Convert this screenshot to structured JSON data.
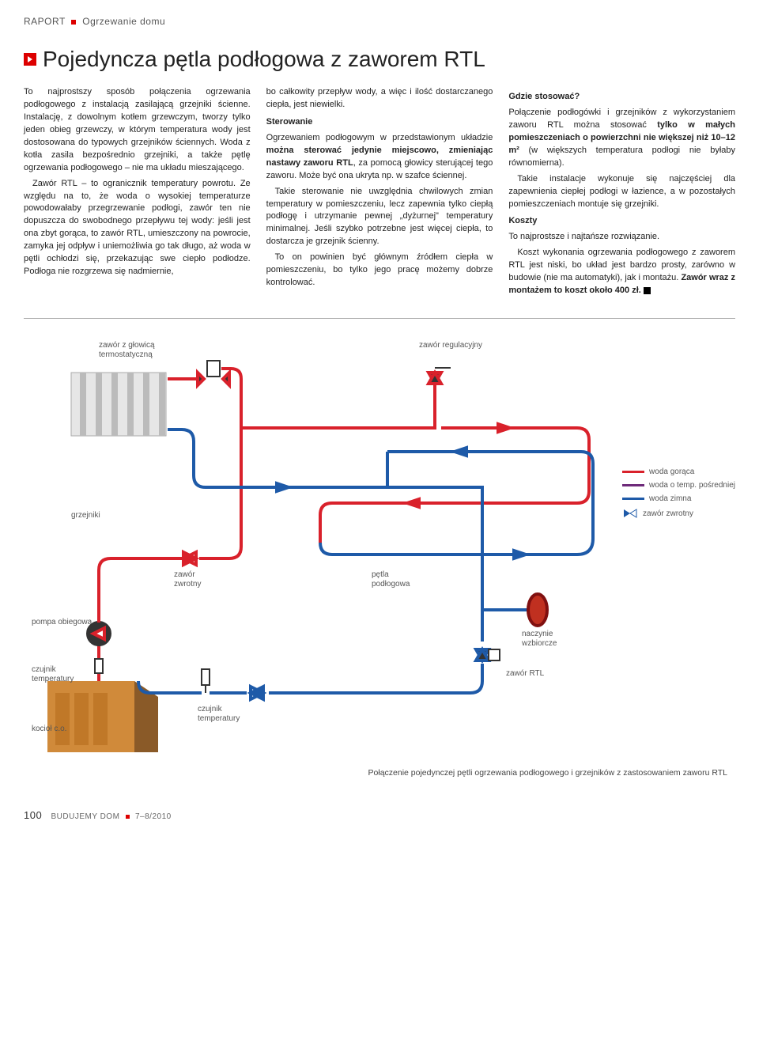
{
  "header": {
    "section": "RAPORT",
    "subsection": "Ogrzewanie domu"
  },
  "article": {
    "title": "Pojedyncza pętla podłogowa z zaworem RTL"
  },
  "col1": {
    "p1": "To najprostszy sposób połączenia ogrzewania podłogowego z instalacją zasilającą grzejniki ścienne. Instalację, z dowolnym kotłem grzewczym, tworzy tylko jeden obieg grzewczy, w którym temperatura wody jest dostosowana do typowych grzejników ściennych. Woda z kotła zasila bezpośrednio grzejniki, a także pętlę ogrzewania podłogowego – nie ma układu mieszającego.",
    "p2": "Zawór RTL – to ogranicznik temperatury powrotu. Ze względu na to, że woda o wysokiej temperaturze powodowałaby przegrzewanie podłogi, zawór ten nie dopuszcza do swobodnego przepływu tej wody: jeśli jest ona zbyt gorąca, to zawór RTL, umieszczony na powrocie, zamyka jej odpływ i uniemożliwia go tak długo, aż woda w pętli ochłodzi się, przekazując swe ciepło podłodze. Podłoga nie rozgrzewa się nadmiernie,"
  },
  "col2": {
    "p1": "bo całkowity przepływ wody, a więc i ilość dostarczanego ciepła, jest niewielki.",
    "head1": "Sterowanie",
    "p2a": "Ogrzewaniem podłogowym w przedstawionym układzie ",
    "p2b": "można sterować jedynie miejscowo, zmieniając nastawy zaworu RTL",
    "p2c": ", za pomocą głowicy sterującej tego zaworu. Może być ona ukryta np. w szafce ściennej.",
    "p3": "Takie sterowanie nie uwzględnia chwilowych zmian temperatury w pomieszczeniu, lecz zapewnia tylko ciepłą podłogę i utrzymanie pewnej „dyżurnej\" temperatury minimalnej. Jeśli szybko potrzebne jest więcej ciepła, to dostarcza je grzejnik ścienny.",
    "p4": "To on powinien być głównym źródłem ciepła w pomieszczeniu, bo tylko jego pracę możemy dobrze kontrolować."
  },
  "col3": {
    "head1": "Gdzie stosować?",
    "p1a": "Połączenie podłogówki i grzejników z wykorzystaniem zaworu RTL można stosować ",
    "p1b": "tylko w małych pomieszczeniach o powierzchni nie większej niż 10–12 m²",
    "p1c": " (w większych temperatura podłogi nie byłaby równomierna).",
    "p2": "Takie instalacje wykonuje się najczęściej dla zapewnienia ciepłej podłogi w łazience, a w pozostałych pomieszczeniach montuje się grzejniki.",
    "head2": "Koszty",
    "p3": "To najprostsze i najtańsze rozwiązanie.",
    "p4a": "Koszt wykonania ogrzewania podłogowego z zaworem RTL jest niski, bo układ jest bardzo prosty, zarówno w budowie (nie ma automatyki), jak i montażu. ",
    "p4b": "Zawór wraz z montażem to koszt około 400 zł."
  },
  "diagram": {
    "labels": {
      "thermo_valve": "zawór z głowicą\ntermostatyczną",
      "reg_valve": "zawór regulacyjny",
      "radiators": "grzejniki",
      "check_valve": "zawór\nzwrotny",
      "floor_loop": "pętla\npodłogowa",
      "pump": "pompa obiegowa",
      "expansion": "naczynie\nwzbiorcze",
      "temp_sensor1": "czujnik\ntemperatury",
      "temp_sensor2": "czujnik\ntemperatury",
      "rtl_valve": "zawór RTL",
      "boiler": "kocioł c.o."
    },
    "legend": {
      "hot": {
        "label": "woda gorąca",
        "color": "#d9212b"
      },
      "mid": {
        "label": "woda o temp. pośredniej",
        "color": "#6e2a7a"
      },
      "cold": {
        "label": "woda zimna",
        "color": "#1e5aa8"
      },
      "check": {
        "label": "zawór zwrotny"
      }
    },
    "colors": {
      "hot": "#d9212b",
      "cold": "#1e5aa8",
      "boiler_fill": "#d08a3a",
      "boiler_side": "#8a5a28",
      "pump": "#222",
      "radiator": "#d4d4d4",
      "stroke_width": 4
    },
    "caption": "Połączenie pojedynczej pętli ogrzewania podłogowego i grzejników z zastosowaniem zaworu RTL"
  },
  "footer": {
    "page": "100",
    "magazine": "BUDUJEMY DOM",
    "issue": "7–8/2010"
  }
}
